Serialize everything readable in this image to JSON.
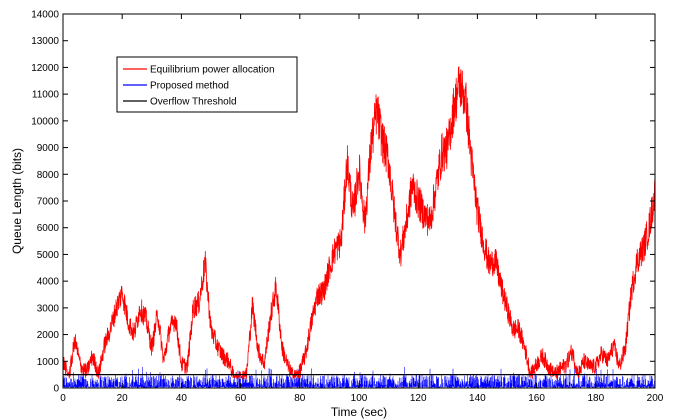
{
  "chart_data": {
    "type": "line",
    "title": "",
    "xlabel": "Time (sec)",
    "ylabel": "Queue Length (bits)",
    "xlim": [
      0,
      200
    ],
    "ylim": [
      0,
      14000
    ],
    "xticks": [
      0,
      20,
      40,
      60,
      80,
      100,
      120,
      140,
      160,
      180,
      200
    ],
    "yticks": [
      0,
      1000,
      2000,
      3000,
      4000,
      5000,
      6000,
      7000,
      8000,
      9000,
      10000,
      11000,
      12000,
      13000,
      14000
    ],
    "grid": false,
    "legend_position": "upper-left",
    "series": [
      {
        "name": "Equilibrium power allocation",
        "color": "#ff0000",
        "style": "noisy-line",
        "x": [
          0,
          2,
          4,
          6,
          8,
          10,
          12,
          14,
          16,
          18,
          20,
          22,
          24,
          26,
          28,
          30,
          32,
          34,
          36,
          38,
          40,
          42,
          44,
          46,
          48,
          50,
          52,
          54,
          56,
          58,
          60,
          62,
          64,
          66,
          68,
          70,
          72,
          74,
          76,
          78,
          80,
          82,
          84,
          86,
          88,
          90,
          92,
          94,
          96,
          98,
          100,
          102,
          104,
          106,
          108,
          110,
          112,
          114,
          116,
          118,
          120,
          122,
          124,
          126,
          128,
          130,
          132,
          134,
          136,
          138,
          140,
          142,
          144,
          146,
          148,
          150,
          152,
          154,
          156,
          158,
          160,
          162,
          164,
          166,
          168,
          170,
          172,
          174,
          176,
          178,
          180,
          182,
          184,
          186,
          188,
          190,
          192,
          194,
          196,
          198,
          200
        ],
        "y": [
          1000,
          400,
          1800,
          800,
          600,
          1200,
          500,
          1600,
          2200,
          3000,
          3600,
          2500,
          2000,
          3000,
          2600,
          1500,
          2800,
          1000,
          2200,
          2600,
          900,
          800,
          3000,
          3200,
          4700,
          2200,
          1600,
          1200,
          1000,
          300,
          400,
          500,
          3100,
          1400,
          900,
          2600,
          3800,
          1500,
          800,
          400,
          600,
          1300,
          2500,
          3500,
          3600,
          4500,
          5200,
          5500,
          8500,
          6500,
          8200,
          6200,
          9000,
          10400,
          9200,
          8500,
          6500,
          5000,
          6200,
          7600,
          7000,
          6500,
          6200,
          7500,
          8800,
          9000,
          10500,
          11400,
          10800,
          8500,
          6600,
          5500,
          4600,
          4800,
          3800,
          3000,
          2200,
          2200,
          1500,
          500,
          900,
          1200,
          800,
          500,
          700,
          900,
          1400,
          500,
          1000,
          800,
          800,
          1300,
          1000,
          1600,
          800,
          1500,
          3600,
          4800,
          5200,
          6000,
          7300
        ]
      },
      {
        "name": "Proposed method",
        "color": "#0000ff",
        "style": "noisy-band",
        "base": 0,
        "band_max": 500,
        "spike_max": 800
      },
      {
        "name": "Overflow Threshold",
        "color": "#000000",
        "style": "constant",
        "value": 500
      }
    ]
  }
}
